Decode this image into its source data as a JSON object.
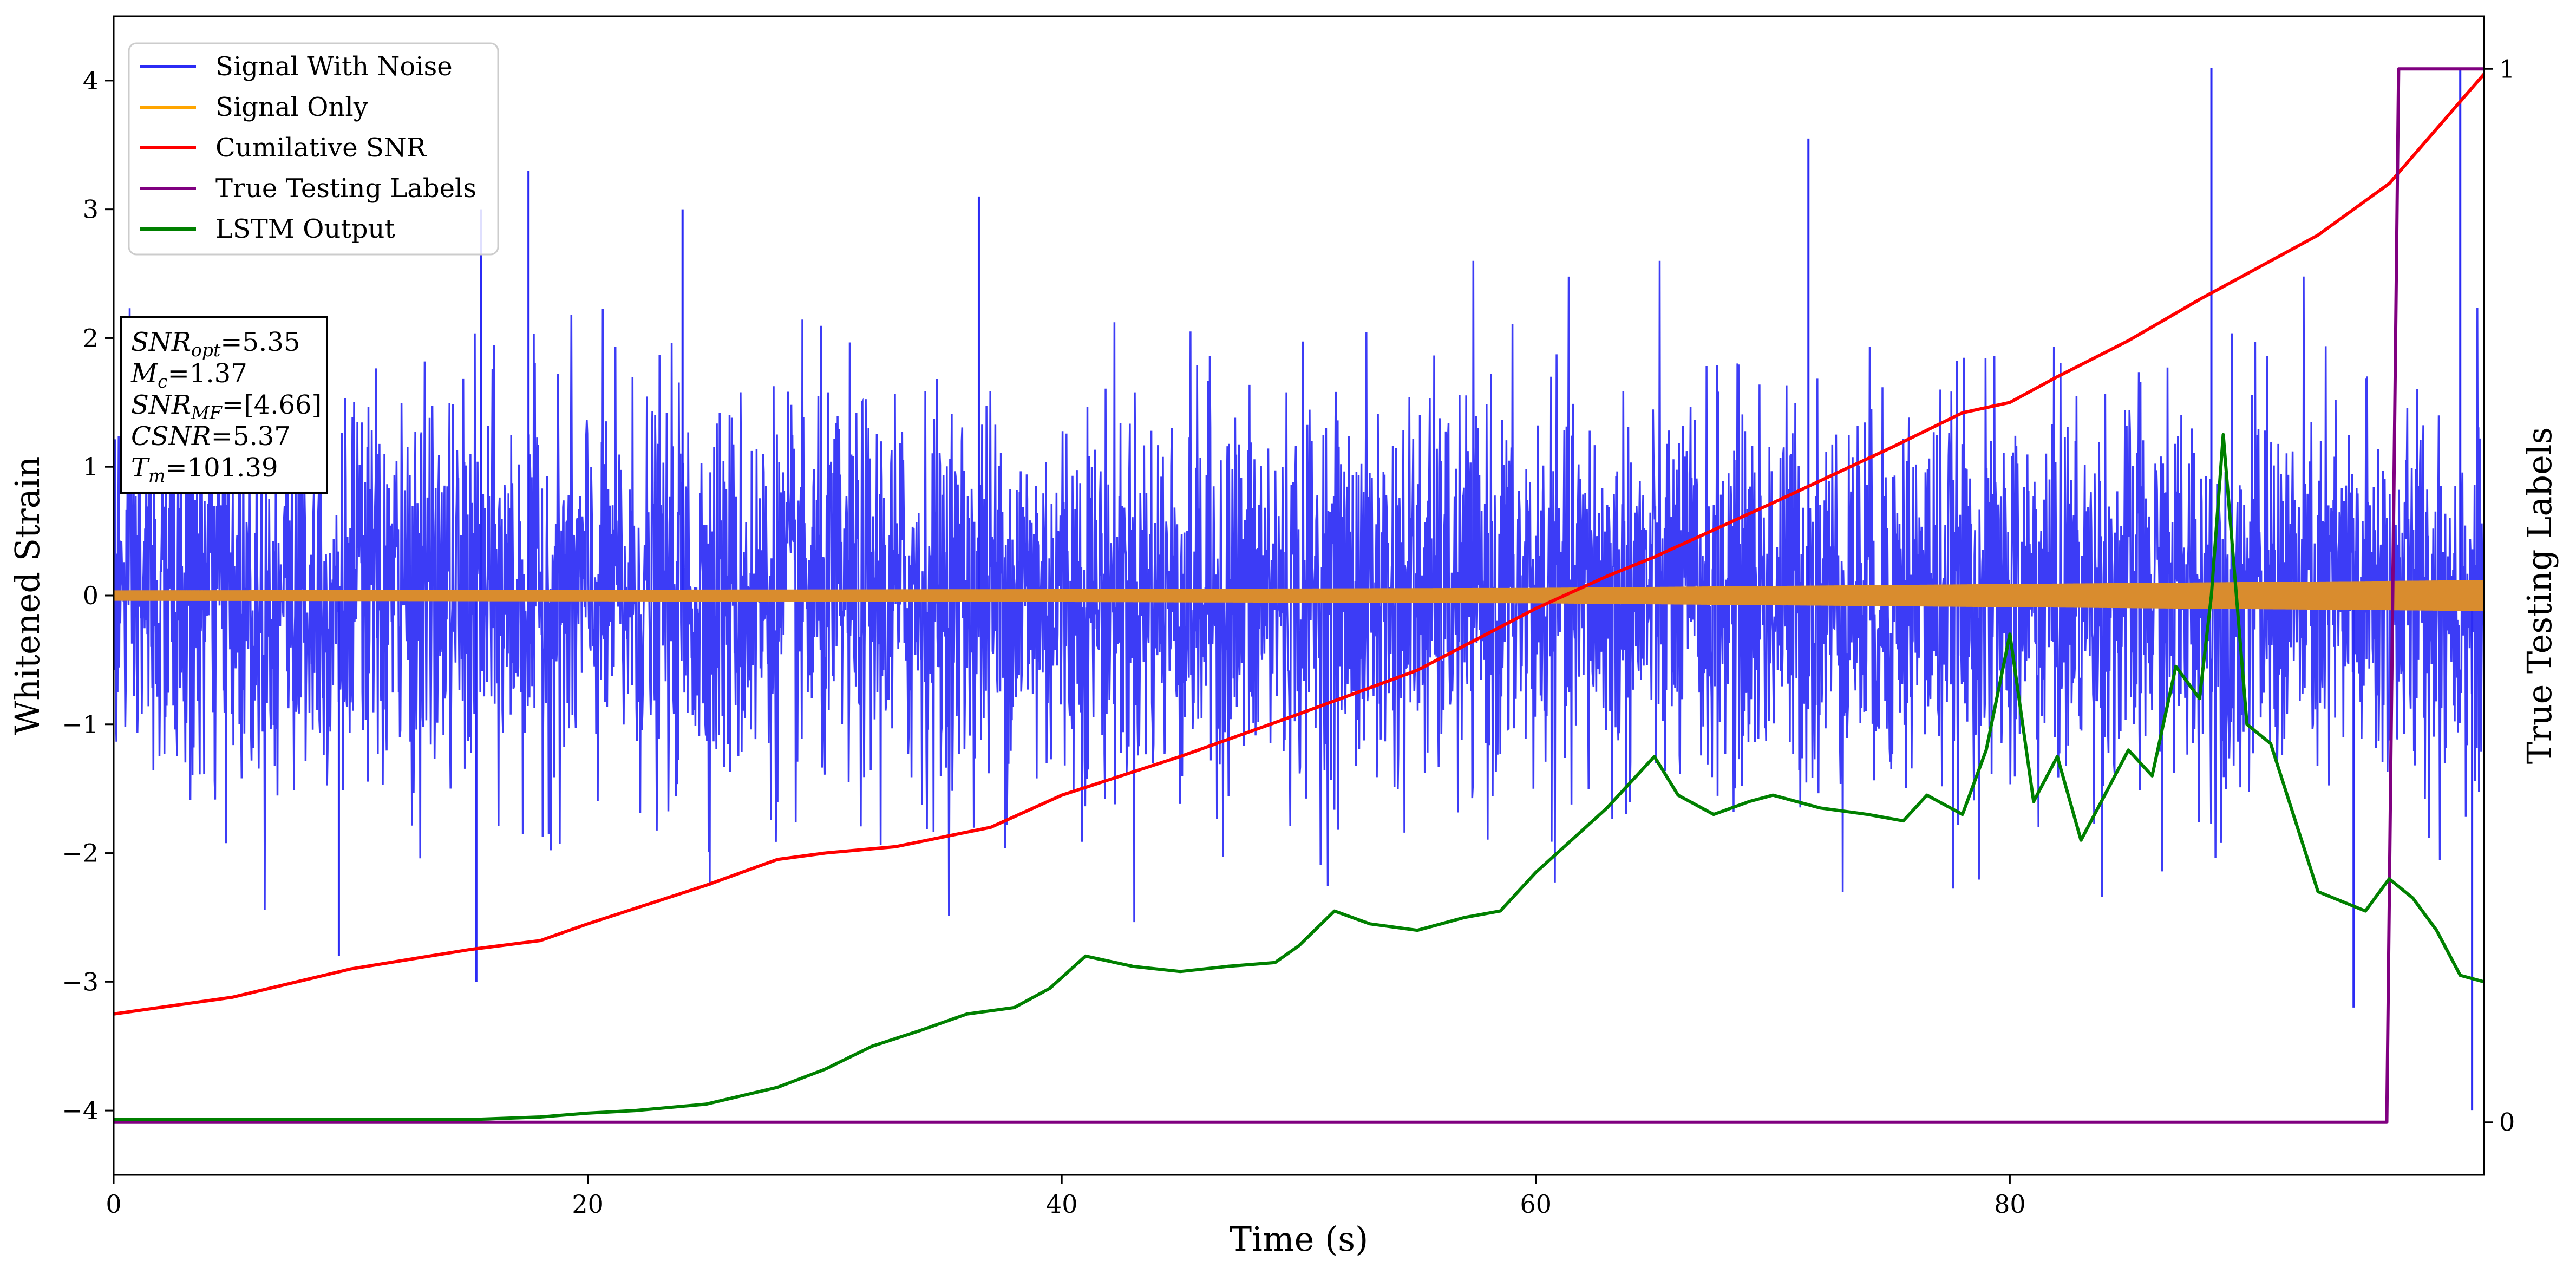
{
  "chart_data": {
    "type": "line",
    "xlabel": "Time (s)",
    "ylabel": "Whitened Strain",
    "y2label": "True Testing Labels",
    "xlim": [
      0,
      100
    ],
    "ylim": [
      -4.5,
      4.5
    ],
    "y2lim": [
      -0.05,
      1.05
    ],
    "x_ticks": [
      0,
      20,
      40,
      60,
      80
    ],
    "x_tick_labels": [
      "0",
      "20",
      "40",
      "60",
      "80"
    ],
    "y_ticks": [
      -4,
      -3,
      -2,
      -1,
      0,
      1,
      2,
      3,
      4
    ],
    "y_tick_labels": [
      "−4",
      "−3",
      "−2",
      "−1",
      "0",
      "1",
      "2",
      "3",
      "4"
    ],
    "y2_ticks": [
      0,
      1
    ],
    "y2_tick_labels": [
      "0",
      "1"
    ],
    "grid": false,
    "legend_position": "upper-left",
    "legend": [
      {
        "label": "Signal With Noise",
        "color": "#2b2bf5"
      },
      {
        "label": "Signal Only",
        "color": "#ffa500"
      },
      {
        "label": "Cumilative SNR",
        "color": "#ff0000"
      },
      {
        "label": "True Testing Labels",
        "color": "#800080"
      },
      {
        "label": "LSTM Output",
        "color": "#008000"
      }
    ],
    "info_box": [
      {
        "base": "SNR",
        "sub": "opt",
        "rest": "=5.35"
      },
      {
        "base": "M",
        "sub": "c",
        "rest": "=1.37"
      },
      {
        "base": "SNR",
        "sub": "MF",
        "rest": "=[4.66]"
      },
      {
        "base": "CSNR",
        "sub": "",
        "rest": "=5.37"
      },
      {
        "base": "T",
        "sub": "m",
        "rest": "=101.39"
      }
    ],
    "series": [
      {
        "name": "Signal With Noise",
        "color": "#2b2bf5",
        "axis": "left",
        "x_range": [
          0,
          100
        ],
        "noise_sigma": 0.75,
        "notable_peaks": [
          {
            "x": 15.5,
            "y": 3.0
          },
          {
            "x": 17.5,
            "y": 3.3
          },
          {
            "x": 24.0,
            "y": 3.0
          },
          {
            "x": 36.5,
            "y": 3.1
          },
          {
            "x": 71.5,
            "y": 3.55
          },
          {
            "x": 88.5,
            "y": 4.1
          },
          {
            "x": 99.0,
            "y": 4.1
          },
          {
            "x": 9.5,
            "y": -2.8
          },
          {
            "x": 15.3,
            "y": -3.0
          },
          {
            "x": 94.5,
            "y": -3.2
          },
          {
            "x": 99.5,
            "y": -4.0
          }
        ]
      },
      {
        "name": "Signal Only",
        "color": "#ffa500",
        "axis": "left",
        "amplitude": [
          [
            0,
            0.04
          ],
          [
            40,
            0.05
          ],
          [
            60,
            0.06
          ],
          [
            80,
            0.09
          ],
          [
            100,
            0.12
          ]
        ]
      },
      {
        "name": "Cumilative SNR",
        "color": "#ff0000",
        "axis": "left",
        "x": [
          0,
          5,
          10,
          15,
          18,
          20,
          25,
          28,
          30,
          33,
          37,
          40,
          45,
          50,
          55,
          60,
          63,
          65,
          70,
          75,
          78,
          80,
          82,
          85,
          88,
          90,
          93,
          96,
          100
        ],
        "y": [
          -3.25,
          -3.12,
          -2.9,
          -2.75,
          -2.68,
          -2.55,
          -2.25,
          -2.05,
          -2.0,
          -1.95,
          -1.8,
          -1.55,
          -1.25,
          -0.92,
          -0.58,
          -0.1,
          0.15,
          0.3,
          0.72,
          1.15,
          1.42,
          1.5,
          1.7,
          1.98,
          2.3,
          2.5,
          2.8,
          3.2,
          4.05
        ]
      },
      {
        "name": "LSTM Output",
        "color": "#008000",
        "axis": "left",
        "x": [
          0,
          10,
          15,
          18,
          20,
          22,
          25,
          28,
          30,
          32,
          34,
          36,
          38,
          39.5,
          41,
          43,
          45,
          47,
          49,
          50,
          51.5,
          53,
          55,
          57,
          58.5,
          60,
          61.5,
          63,
          65,
          66,
          67.5,
          69,
          70,
          72,
          74,
          75.5,
          76.5,
          78,
          79,
          80,
          81,
          82,
          83,
          84,
          85,
          86,
          87,
          88,
          88.5,
          89,
          90,
          91,
          93,
          95,
          96,
          97,
          98,
          99,
          100
        ],
        "y": [
          -4.07,
          -4.07,
          -4.07,
          -4.05,
          -4.02,
          -4.0,
          -3.95,
          -3.82,
          -3.68,
          -3.5,
          -3.38,
          -3.25,
          -3.2,
          -3.05,
          -2.8,
          -2.88,
          -2.92,
          -2.88,
          -2.85,
          -2.72,
          -2.45,
          -2.55,
          -2.6,
          -2.5,
          -2.45,
          -2.15,
          -1.9,
          -1.65,
          -1.25,
          -1.55,
          -1.7,
          -1.6,
          -1.55,
          -1.65,
          -1.7,
          -1.75,
          -1.55,
          -1.7,
          -1.2,
          -0.3,
          -1.6,
          -1.25,
          -1.9,
          -1.55,
          -1.2,
          -1.4,
          -0.55,
          -0.8,
          0.0,
          1.25,
          -1.0,
          -1.15,
          -2.3,
          -2.45,
          -2.2,
          -2.35,
          -2.6,
          -2.95,
          -3.0
        ]
      },
      {
        "name": "True Testing Labels",
        "color": "#800080",
        "axis": "right",
        "x": [
          0,
          95.9,
          96.4,
          100
        ],
        "y": [
          0,
          0,
          1,
          1
        ]
      }
    ]
  }
}
